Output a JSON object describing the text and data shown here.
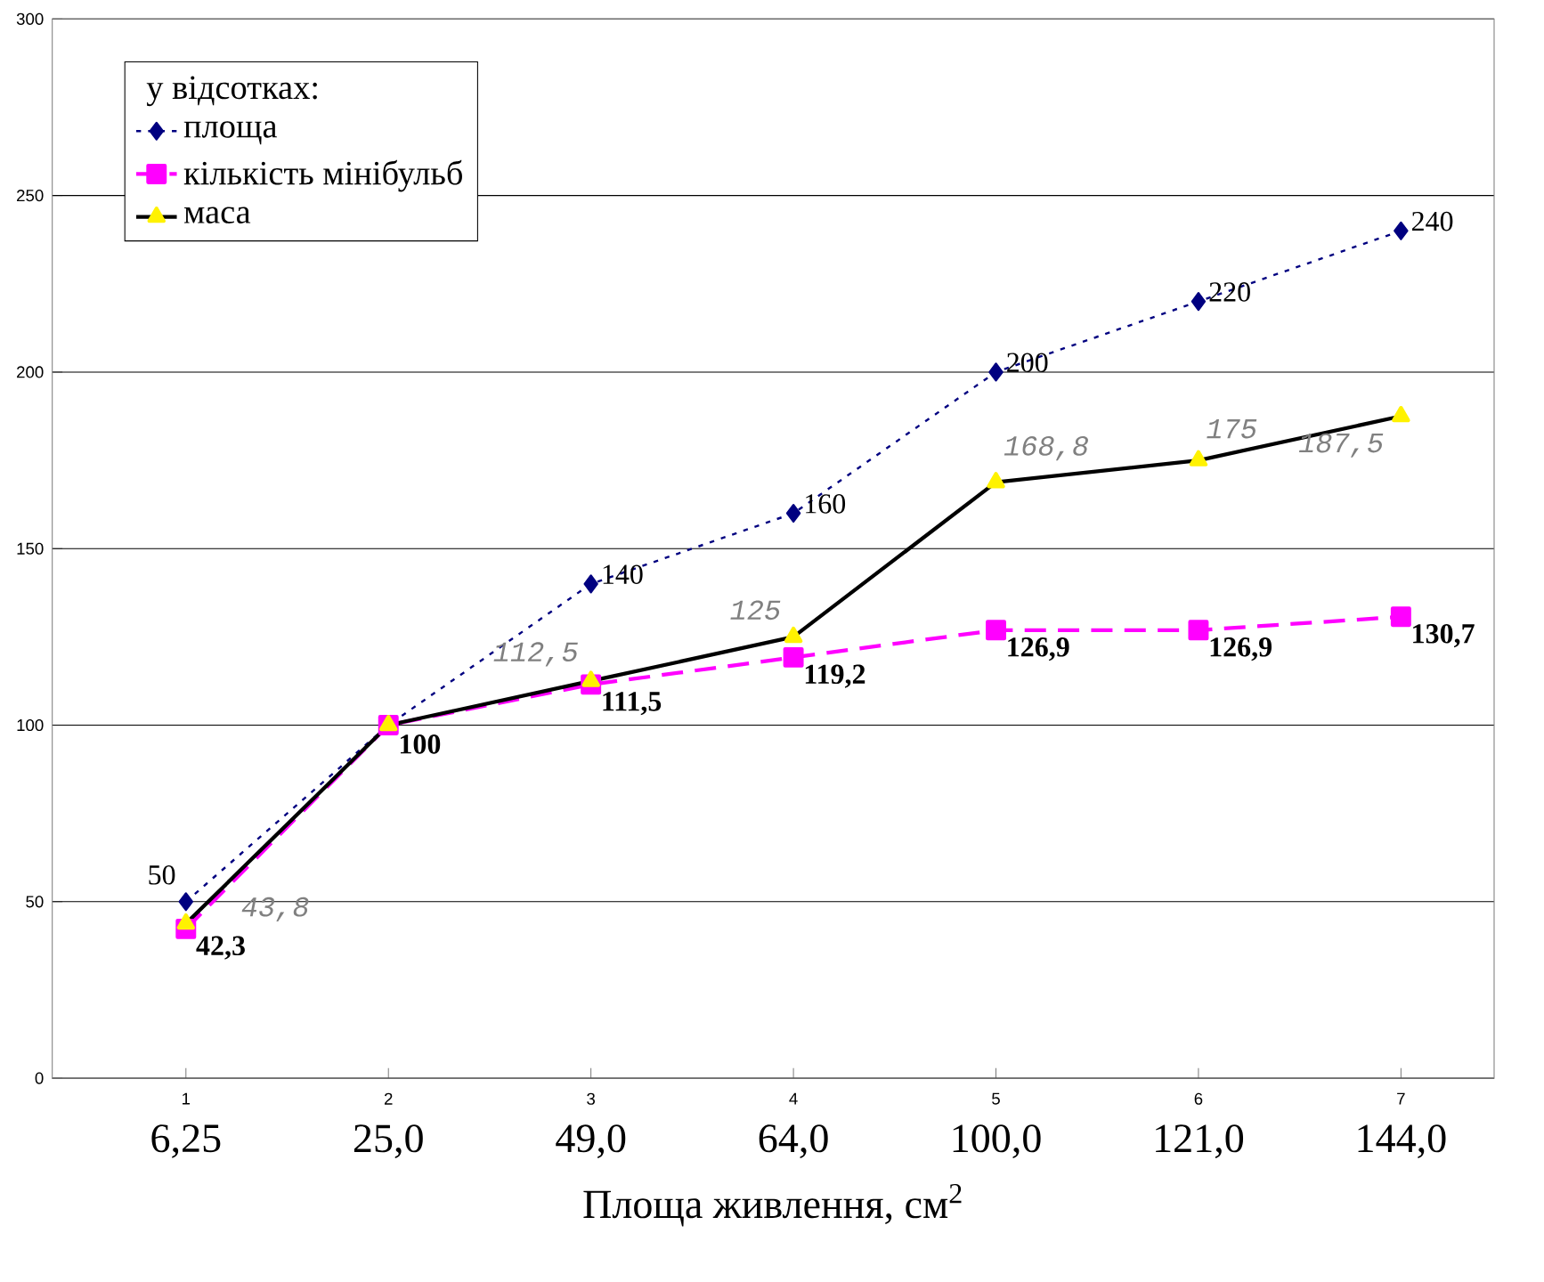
{
  "chart_data": {
    "type": "line",
    "xlabel": "Площа  живлення, см$^{2}$",
    "legend_title": "у відсотках:",
    "legend": "top left",
    "grid": "y",
    "categories": [
      "6,25",
      "25,0",
      "49,0",
      "64,0",
      "100,0",
      "121,0",
      "144,0"
    ],
    "annotations": [
      "1",
      "2",
      "3",
      "4",
      "5",
      "6",
      "7"
    ],
    "ylim": [
      0,
      300
    ],
    "yticks": [
      0,
      50,
      100,
      150,
      200,
      250,
      300
    ],
    "series": [
      {
        "name": "площа",
        "color": "#000080",
        "marker": "diamond",
        "line_style": "dotted",
        "values": [
          50,
          100,
          140,
          160,
          200,
          220,
          240
        ],
        "value_labels": [
          "50",
          null,
          "140",
          "160",
          "200",
          "220",
          "240"
        ]
      },
      {
        "name": "кількість мінібульб",
        "color": "#ff00ff",
        "marker": "square",
        "line_style": "dashed",
        "values": [
          42.3,
          100,
          111.5,
          119.2,
          126.9,
          126.9,
          130.7
        ],
        "value_labels": [
          "42,3",
          "100",
          "111,5",
          "119,2",
          "126,9",
          "126,9",
          "130,7"
        ]
      },
      {
        "name": "маса",
        "color": "#000000",
        "marker": "triangle",
        "line_style": "solid",
        "values": [
          43.8,
          100,
          112.5,
          125,
          168.8,
          175,
          187.5
        ],
        "value_labels": [
          "43,8",
          null,
          "112,5",
          "125",
          "168,8",
          "175",
          "187,5"
        ]
      }
    ]
  }
}
